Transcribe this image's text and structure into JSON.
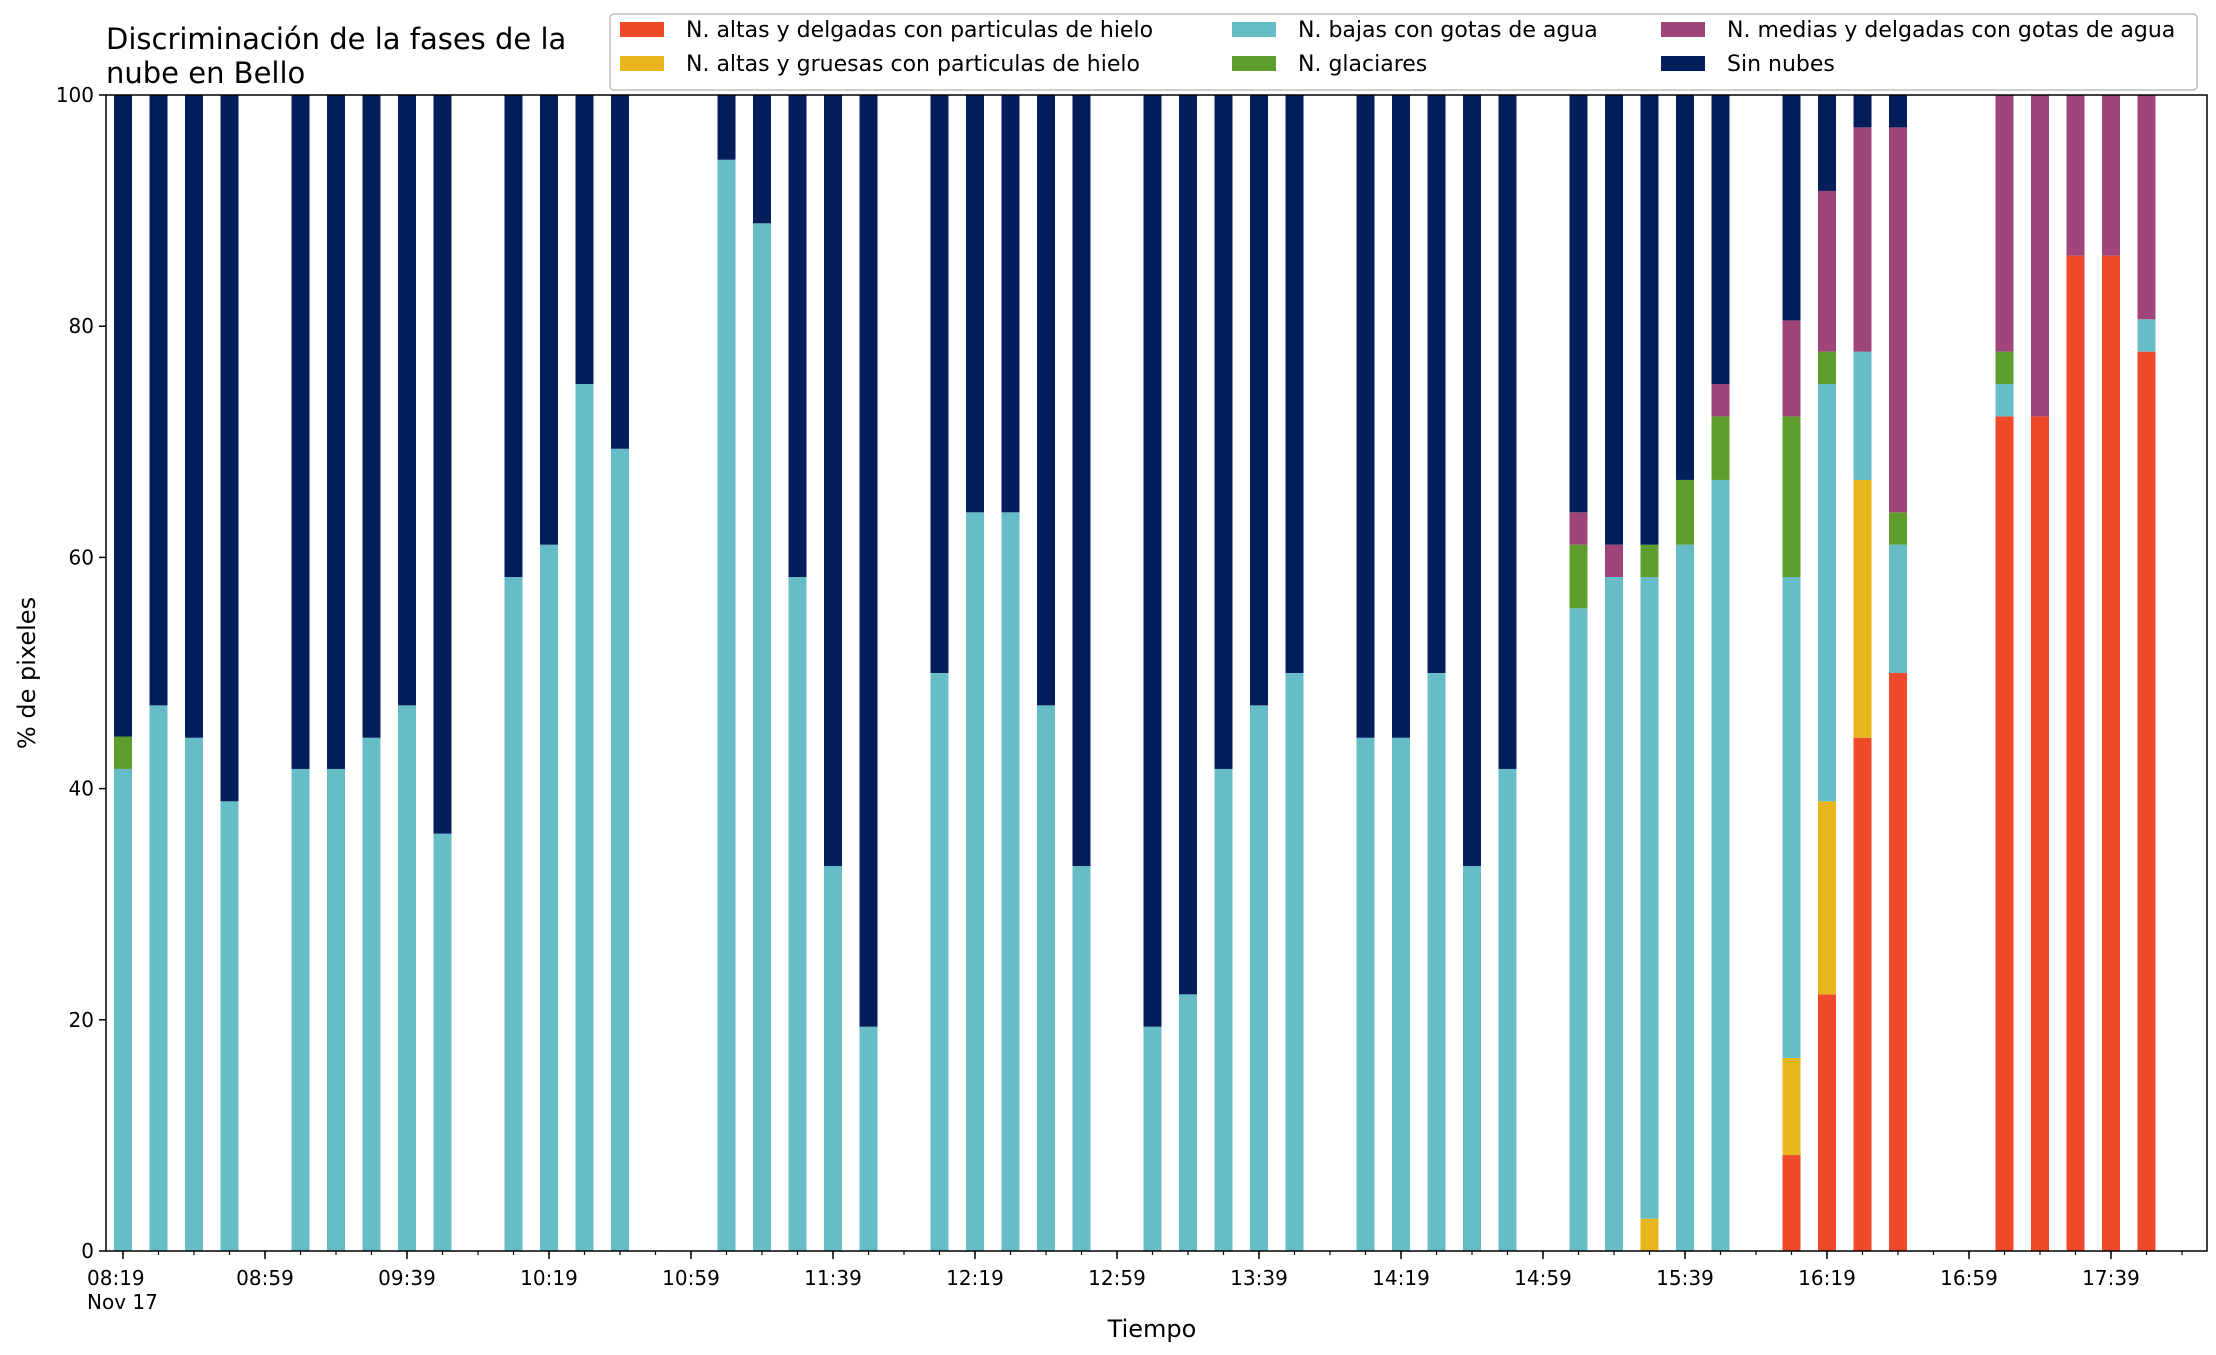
{
  "chart_data": {
    "type": "bar",
    "stacked": true,
    "title": "Discriminación de la fases de la\nnube en Bello",
    "xlabel": "Tiempo",
    "ylabel": "% de pixeles",
    "ylim": [
      0,
      100
    ],
    "yticks": [
      0,
      20,
      40,
      60,
      80,
      100
    ],
    "grid": false,
    "legend_position": "top-right",
    "x_start": "08:19",
    "x_end": "17:59",
    "x_date_label": "Nov 17",
    "x_major_ticks": [
      "08:19",
      "08:59",
      "09:39",
      "10:19",
      "10:59",
      "11:39",
      "12:19",
      "12:59",
      "13:39",
      "14:19",
      "14:59",
      "15:39",
      "16:19",
      "16:59",
      "17:39"
    ],
    "x_minor_tick_step_minutes": 10,
    "bar_interval_minutes": 10,
    "series": [
      {
        "name": "N. altas y delgadas con particulas de hielo",
        "color": "#ee4a2a"
      },
      {
        "name": "N. altas y gruesas con particulas de hielo",
        "color": "#e8b51c"
      },
      {
        "name": "N. bajas con gotas de agua",
        "color": "#66bdc8"
      },
      {
        "name": "N. glaciares",
        "color": "#5e9e2d"
      },
      {
        "name": "N. medias y delgadas con gotas de agua",
        "color": "#a0457a"
      },
      {
        "name": "Sin nubes",
        "color": "#041e5c"
      }
    ],
    "bars": [
      {
        "time": "08:19",
        "values": [
          0,
          0,
          41.7,
          2.8,
          0,
          55.5
        ]
      },
      {
        "time": "08:29",
        "values": [
          0,
          0,
          47.2,
          0,
          0,
          52.8
        ]
      },
      {
        "time": "08:39",
        "values": [
          0,
          0,
          44.4,
          0,
          0,
          55.6
        ]
      },
      {
        "time": "08:49",
        "values": [
          0,
          0,
          38.9,
          0,
          0,
          61.1
        ]
      },
      {
        "time": "09:09",
        "values": [
          0,
          0,
          41.7,
          0,
          0,
          58.3
        ]
      },
      {
        "time": "09:19",
        "values": [
          0,
          0,
          41.7,
          0,
          0,
          58.3
        ]
      },
      {
        "time": "09:29",
        "values": [
          0,
          0,
          44.4,
          0,
          0,
          55.6
        ]
      },
      {
        "time": "09:39",
        "values": [
          0,
          0,
          47.2,
          0,
          0,
          52.8
        ]
      },
      {
        "time": "09:49",
        "values": [
          0,
          0,
          36.1,
          0,
          0,
          63.9
        ]
      },
      {
        "time": "10:09",
        "values": [
          0,
          0,
          58.3,
          0,
          0,
          41.7
        ]
      },
      {
        "time": "10:19",
        "values": [
          0,
          0,
          61.1,
          0,
          0,
          38.9
        ]
      },
      {
        "time": "10:29",
        "values": [
          0,
          0,
          75.0,
          0,
          0,
          25.0
        ]
      },
      {
        "time": "10:39",
        "values": [
          0,
          0,
          69.4,
          0,
          0,
          30.6
        ]
      },
      {
        "time": "11:09",
        "values": [
          0,
          0,
          94.4,
          0,
          0,
          5.6
        ]
      },
      {
        "time": "11:19",
        "values": [
          0,
          0,
          88.9,
          0,
          0,
          11.1
        ]
      },
      {
        "time": "11:29",
        "values": [
          0,
          0,
          58.3,
          0,
          0,
          41.7
        ]
      },
      {
        "time": "11:39",
        "values": [
          0,
          0,
          33.3,
          0,
          0,
          66.7
        ]
      },
      {
        "time": "11:49",
        "values": [
          0,
          0,
          19.4,
          0,
          0,
          80.6
        ]
      },
      {
        "time": "12:09",
        "values": [
          0,
          0,
          50.0,
          0,
          0,
          50.0
        ]
      },
      {
        "time": "12:19",
        "values": [
          0,
          0,
          63.9,
          0,
          0,
          36.1
        ]
      },
      {
        "time": "12:29",
        "values": [
          0,
          0,
          63.9,
          0,
          0,
          36.1
        ]
      },
      {
        "time": "12:39",
        "values": [
          0,
          0,
          47.2,
          0,
          0,
          52.8
        ]
      },
      {
        "time": "12:49",
        "values": [
          0,
          0,
          33.3,
          0,
          0,
          66.7
        ]
      },
      {
        "time": "13:09",
        "values": [
          0,
          0,
          19.4,
          0,
          0,
          80.6
        ]
      },
      {
        "time": "13:19",
        "values": [
          0,
          0,
          22.2,
          0,
          0,
          77.8
        ]
      },
      {
        "time": "13:29",
        "values": [
          0,
          0,
          41.7,
          0,
          0,
          58.3
        ]
      },
      {
        "time": "13:39",
        "values": [
          0,
          0,
          47.2,
          0,
          0,
          52.8
        ]
      },
      {
        "time": "13:49",
        "values": [
          0,
          0,
          50.0,
          0,
          0,
          50.0
        ]
      },
      {
        "time": "14:09",
        "values": [
          0,
          0,
          44.4,
          0,
          0,
          55.6
        ]
      },
      {
        "time": "14:19",
        "values": [
          0,
          0,
          44.4,
          0,
          0,
          55.6
        ]
      },
      {
        "time": "14:29",
        "values": [
          0,
          0,
          50.0,
          0,
          0,
          50.0
        ]
      },
      {
        "time": "14:39",
        "values": [
          0,
          0,
          33.3,
          0,
          0,
          66.7
        ]
      },
      {
        "time": "14:49",
        "values": [
          0,
          0,
          41.7,
          0,
          0,
          58.3
        ]
      },
      {
        "time": "15:09",
        "values": [
          0,
          0,
          55.6,
          5.5,
          2.8,
          36.1
        ]
      },
      {
        "time": "15:19",
        "values": [
          0,
          0,
          58.3,
          0,
          2.8,
          38.9
        ]
      },
      {
        "time": "15:29",
        "values": [
          0,
          2.8,
          55.5,
          2.8,
          0,
          38.9
        ]
      },
      {
        "time": "15:39",
        "values": [
          0,
          0,
          61.1,
          5.6,
          0,
          33.3
        ]
      },
      {
        "time": "15:49",
        "values": [
          0,
          0,
          66.7,
          5.5,
          2.8,
          25.0
        ]
      },
      {
        "time": "16:09",
        "values": [
          8.3,
          8.4,
          41.6,
          13.9,
          8.3,
          19.5
        ]
      },
      {
        "time": "16:19",
        "values": [
          22.2,
          16.7,
          36.1,
          2.8,
          13.9,
          8.3
        ]
      },
      {
        "time": "16:29",
        "values": [
          44.4,
          22.3,
          11.1,
          0,
          19.4,
          2.8
        ]
      },
      {
        "time": "16:39",
        "values": [
          50.0,
          0,
          11.1,
          2.8,
          33.3,
          2.8
        ]
      },
      {
        "time": "17:09",
        "values": [
          72.2,
          0,
          2.8,
          2.8,
          22.2,
          0
        ]
      },
      {
        "time": "17:19",
        "values": [
          72.2,
          0,
          0,
          0,
          27.8,
          0
        ]
      },
      {
        "time": "17:29",
        "values": [
          86.1,
          0,
          0,
          0,
          13.9,
          0
        ]
      },
      {
        "time": "17:39",
        "values": [
          86.1,
          0,
          0,
          0,
          13.9,
          0
        ]
      },
      {
        "time": "17:49",
        "values": [
          77.8,
          0,
          2.8,
          0,
          19.4,
          0
        ]
      }
    ]
  }
}
